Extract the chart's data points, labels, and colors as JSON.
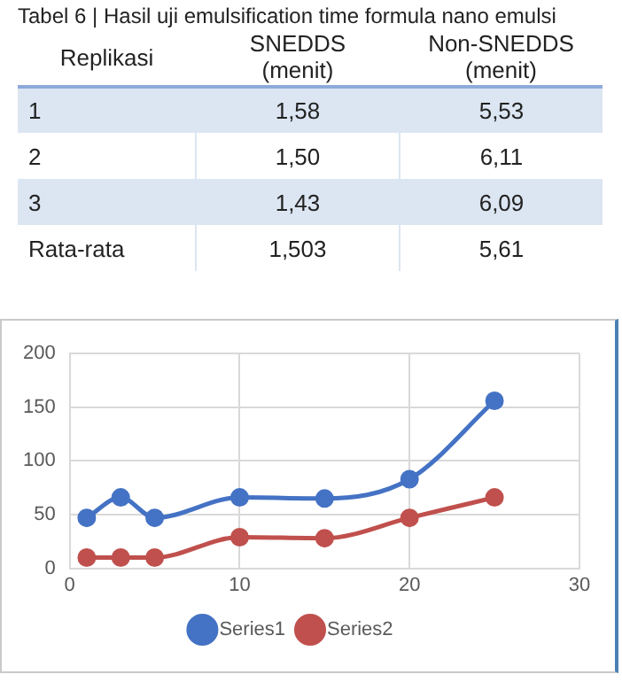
{
  "chart_data": [
    {
      "type": "other",
      "title": "Tabel 6 | Hasil uji emulsification time formula nano emulsi",
      "categories": [
        "Replikasi",
        "SNEDDS (menit)",
        "Non-SNEDDS (menit)"
      ],
      "annotations": [
        "1",
        "1,58",
        "5,53",
        "2",
        "1,50",
        "6,11",
        "3",
        "1,43",
        "6,09",
        "Rata-rata",
        "1,503",
        "5,61"
      ]
    },
    {
      "type": "line",
      "x": [
        1,
        3,
        5,
        10,
        15,
        20,
        25
      ],
      "series": [
        {
          "name": "Series1",
          "color": "#4472c4",
          "values": [
            47,
            66,
            47,
            66,
            65,
            83,
            156
          ]
        },
        {
          "name": "Series2",
          "color": "#c0504d",
          "values": [
            10,
            10,
            10,
            29,
            28,
            47,
            66
          ]
        }
      ],
      "xlim": [
        0,
        30
      ],
      "xticks": [
        0,
        10,
        20,
        30
      ],
      "ylim": [
        0,
        200
      ],
      "yticks": [
        0,
        50,
        100,
        150,
        200
      ],
      "grid": true,
      "legend": "bottom",
      "marker": "circle"
    }
  ]
}
